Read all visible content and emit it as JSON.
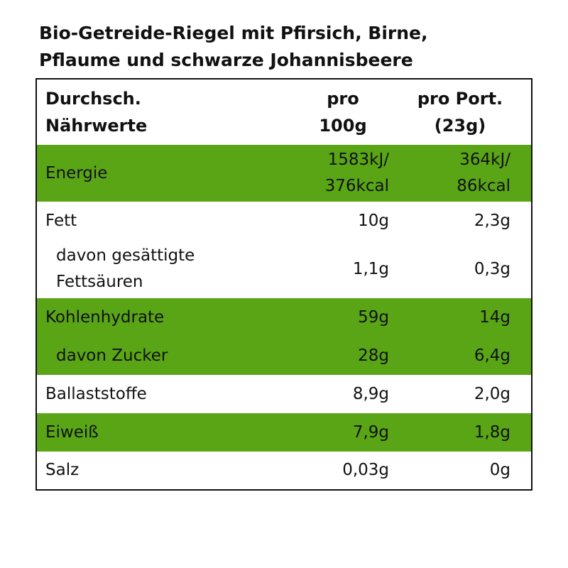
{
  "title": [
    "Bio-Getreide-Riegel mit Pfirsich, Birne,",
    "Pflaume und schwarze Johannisbeere"
  ],
  "table": {
    "header": {
      "label": [
        "Durchsch.",
        "Nährwerte"
      ],
      "per_100g": [
        "pro",
        "100g"
      ],
      "per_portion": [
        "pro Port.",
        "(23g)"
      ]
    },
    "highlight_color": "#5aa516",
    "rows": [
      {
        "label": [
          "Energie"
        ],
        "per_100g": [
          "1583kJ/",
          "376kcal"
        ],
        "per_portion": [
          "364kJ/",
          "86kcal"
        ],
        "highlighted": true,
        "indented": false
      },
      {
        "label": [
          "Fett"
        ],
        "per_100g": [
          "10g"
        ],
        "per_portion": [
          "2,3g"
        ],
        "highlighted": false,
        "indented": false
      },
      {
        "label": [
          "davon gesättigte",
          "Fettsäuren"
        ],
        "per_100g": [
          "1,1g"
        ],
        "per_portion": [
          "0,3g"
        ],
        "highlighted": false,
        "indented": true
      },
      {
        "label": [
          "Kohlenhydrate"
        ],
        "per_100g": [
          "59g"
        ],
        "per_portion": [
          "14g"
        ],
        "highlighted": true,
        "indented": false
      },
      {
        "label": [
          "davon Zucker"
        ],
        "per_100g": [
          "28g"
        ],
        "per_portion": [
          "6,4g"
        ],
        "highlighted": true,
        "indented": true
      },
      {
        "label": [
          "Ballaststoffe"
        ],
        "per_100g": [
          "8,9g"
        ],
        "per_portion": [
          "2,0g"
        ],
        "highlighted": false,
        "indented": false
      },
      {
        "label": [
          "Eiweiß"
        ],
        "per_100g": [
          "7,9g"
        ],
        "per_portion": [
          "1,8g"
        ],
        "highlighted": true,
        "indented": false
      },
      {
        "label": [
          "Salz"
        ],
        "per_100g": [
          "0,03g"
        ],
        "per_portion": [
          "0g"
        ],
        "highlighted": false,
        "indented": false
      }
    ]
  }
}
